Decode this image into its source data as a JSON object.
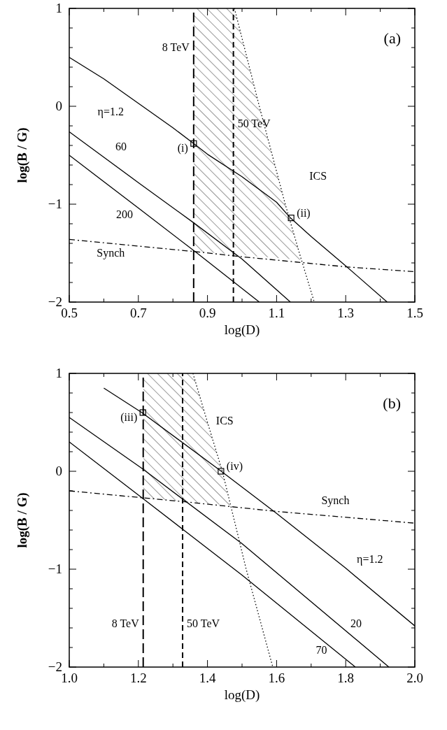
{
  "chart_data": [
    {
      "type": "line",
      "xlabel": "log(D)",
      "ylabel": "log(B / G)",
      "xlim": [
        0.5,
        1.5
      ],
      "ylim": [
        -2,
        1
      ],
      "xticks": [
        0.5,
        {
          "value": 0.6,
          "label": null
        },
        0.7,
        {
          "value": 0.8,
          "label": null
        },
        0.9,
        {
          "value": 1.0,
          "label": null
        },
        1.1,
        {
          "value": 1.2,
          "label": null
        },
        1.3,
        {
          "value": 1.4,
          "label": null
        },
        1.5
      ],
      "yticks": [
        -2,
        {
          "value": -1.8,
          "label": null
        },
        {
          "value": -1.6,
          "label": null
        },
        {
          "value": -1.4,
          "label": null
        },
        {
          "value": -1.2,
          "label": null
        },
        -1,
        {
          "value": -0.8,
          "label": null
        },
        {
          "value": -0.6,
          "label": null
        },
        {
          "value": -0.4,
          "label": null
        },
        {
          "value": -0.2,
          "label": null
        },
        0,
        {
          "value": 0.2,
          "label": null
        },
        {
          "value": 0.4,
          "label": null
        },
        {
          "value": 0.6,
          "label": null
        },
        {
          "value": 0.8,
          "label": null
        },
        1
      ],
      "series": [
        {
          "type": "area",
          "color": "#000000",
          "x": [
            0.86,
            0.978,
            1.05,
            1.125,
            1.172,
            0.86
          ],
          "values": [
            1,
            1,
            0,
            -1,
            -1.57,
            -1.48
          ]
        },
        {
          "type": "line",
          "name": "η=1.2",
          "color": "#000000",
          "line_style": "solid",
          "x": [
            0.5,
            0.6,
            0.7,
            0.8,
            0.86,
            0.9,
            1.0,
            1.1,
            1.14,
            1.2,
            1.3,
            1.42
          ],
          "values": [
            0.5,
            0.28,
            0.03,
            -0.22,
            -0.38,
            -0.49,
            -0.72,
            -0.98,
            -1.14,
            -1.33,
            -1.63,
            -2
          ]
        },
        {
          "type": "line",
          "name": "60",
          "color": "#000000",
          "line_style": "solid",
          "x": [
            0.5,
            0.7,
            0.86,
            1.0,
            1.14
          ],
          "values": [
            -0.26,
            -0.78,
            -1.19,
            -1.56,
            -2
          ]
        },
        {
          "type": "line",
          "name": "200",
          "color": "#000000",
          "line_style": "solid",
          "x": [
            0.5,
            0.7,
            0.87,
            1.05
          ],
          "values": [
            -0.5,
            -1.04,
            -1.5,
            -2
          ]
        },
        {
          "type": "line",
          "name": "Synch",
          "color": "#000000",
          "line_style": "dashdot",
          "x": [
            0.5,
            0.88,
            0.98,
            1.3,
            1.5
          ],
          "values": [
            -1.36,
            -1.49,
            -1.53,
            -1.64,
            -1.69
          ]
        },
        {
          "type": "line",
          "name": "ICS",
          "color": "#000000",
          "line_style": "dotted",
          "x": [
            0.978,
            1.05,
            1.125,
            1.166,
            1.209
          ],
          "values": [
            1,
            0,
            -1,
            -1.5,
            -2
          ]
        },
        {
          "type": "scatter",
          "color": "#000000",
          "marker": "square",
          "x": [
            0.86,
            1.142
          ],
          "values": [
            -0.38,
            -1.14
          ],
          "value_labels": [
            "(i)",
            "(ii)"
          ]
        }
      ],
      "ref_lines": [
        {
          "axis": "x",
          "value": 0.86,
          "line_style": "longdash",
          "label": "8 TeV"
        },
        {
          "axis": "x",
          "value": 0.975,
          "line_style": "dashed",
          "label": "50 TeV"
        }
      ],
      "annotations": [
        "(a)"
      ]
    },
    {
      "type": "line",
      "xlabel": "log(D)",
      "ylabel": "log(B / G)",
      "xlim": [
        1.0,
        2.0
      ],
      "ylim": [
        -2,
        1
      ],
      "xticks": [
        {
          "value": 1.0,
          "label": "1.0"
        },
        {
          "value": 1.1,
          "label": null
        },
        1.2,
        {
          "value": 1.3,
          "label": null
        },
        1.4,
        {
          "value": 1.5,
          "label": null
        },
        1.6,
        {
          "value": 1.7,
          "label": null
        },
        1.8,
        {
          "value": 1.9,
          "label": null
        },
        {
          "value": 2.0,
          "label": "2.0"
        }
      ],
      "yticks": [
        -2,
        {
          "value": -1.8,
          "label": null
        },
        {
          "value": -1.6,
          "label": null
        },
        {
          "value": -1.4,
          "label": null
        },
        {
          "value": -1.2,
          "label": null
        },
        -1,
        {
          "value": -0.8,
          "label": null
        },
        {
          "value": -0.6,
          "label": null
        },
        {
          "value": -0.4,
          "label": null
        },
        {
          "value": -0.2,
          "label": null
        },
        0,
        {
          "value": 0.2,
          "label": null
        },
        {
          "value": 0.4,
          "label": null
        },
        {
          "value": 0.6,
          "label": null
        },
        {
          "value": 0.8,
          "label": null
        },
        1
      ],
      "series": [
        {
          "type": "area",
          "color": "#000000",
          "x": [
            1.214,
            1.358,
            1.4,
            1.443,
            1.465,
            1.214
          ],
          "values": [
            1,
            1,
            0.5,
            0,
            -0.35,
            -0.27
          ]
        },
        {
          "type": "line",
          "name": "η=1.2",
          "color": "#000000",
          "line_style": "solid",
          "x": [
            1.1,
            1.21,
            1.44,
            1.6,
            1.8,
            2.0
          ],
          "values": [
            0.85,
            0.6,
            0,
            -0.43,
            -0.99,
            -1.58
          ]
        },
        {
          "type": "line",
          "name": "20",
          "color": "#000000",
          "line_style": "solid",
          "x": [
            1.0,
            1.21,
            1.5,
            1.925
          ],
          "values": [
            0.55,
            0.03,
            -0.74,
            -2
          ]
        },
        {
          "type": "line",
          "name": "70",
          "color": "#000000",
          "line_style": "solid",
          "x": [
            1.0,
            1.21,
            1.5,
            1.828
          ],
          "values": [
            0.3,
            -0.27,
            -1.06,
            -2
          ]
        },
        {
          "type": "line",
          "name": "Synch",
          "color": "#000000",
          "line_style": "dashdot",
          "x": [
            1.0,
            1.21,
            1.33,
            1.6,
            2.0
          ],
          "values": [
            -0.2,
            -0.27,
            -0.31,
            -0.41,
            -0.53
          ]
        },
        {
          "type": "line",
          "name": "ICS",
          "color": "#000000",
          "line_style": "dotted",
          "x": [
            1.358,
            1.4,
            1.443,
            1.512,
            1.589
          ],
          "values": [
            1,
            0.5,
            0,
            -1,
            -2
          ]
        },
        {
          "type": "scatter",
          "color": "#000000",
          "marker": "square",
          "x": [
            1.213,
            1.439
          ],
          "values": [
            0.6,
            0
          ],
          "value_labels": [
            "(iii)",
            "(iv)"
          ]
        }
      ],
      "ref_lines": [
        {
          "axis": "x",
          "value": 1.214,
          "line_style": "longdash",
          "label": "8 TeV"
        },
        {
          "axis": "x",
          "value": 1.328,
          "line_style": "dashed",
          "label": "50 TeV"
        }
      ],
      "annotations": [
        "(b)"
      ]
    }
  ]
}
